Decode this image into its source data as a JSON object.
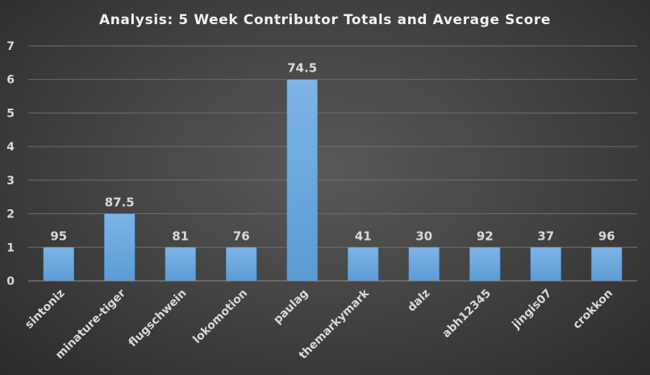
{
  "chart_data": {
    "type": "bar",
    "title": "Analysis:  5 Week Contributor Totals and Average Score",
    "categories": [
      "sintoniz",
      "minature-tiger",
      "flugschwein",
      "lokomotion",
      "paulag",
      "themarkymark",
      "dalz",
      "abh12345",
      "jingis07",
      "crokkon"
    ],
    "values": [
      1,
      2,
      1,
      1,
      6,
      1,
      1,
      1,
      1,
      1
    ],
    "data_labels": [
      "95",
      "87.5",
      "81",
      "76",
      "74.5",
      "41",
      "30",
      "92",
      "37",
      "96"
    ],
    "ylim": [
      0,
      7
    ],
    "yticks": [
      0,
      1,
      2,
      3,
      4,
      5,
      6,
      7
    ],
    "grid": true,
    "legend": "none",
    "bar_color": "#5b9bd5",
    "bar_color_light": "#7eb4e6"
  }
}
